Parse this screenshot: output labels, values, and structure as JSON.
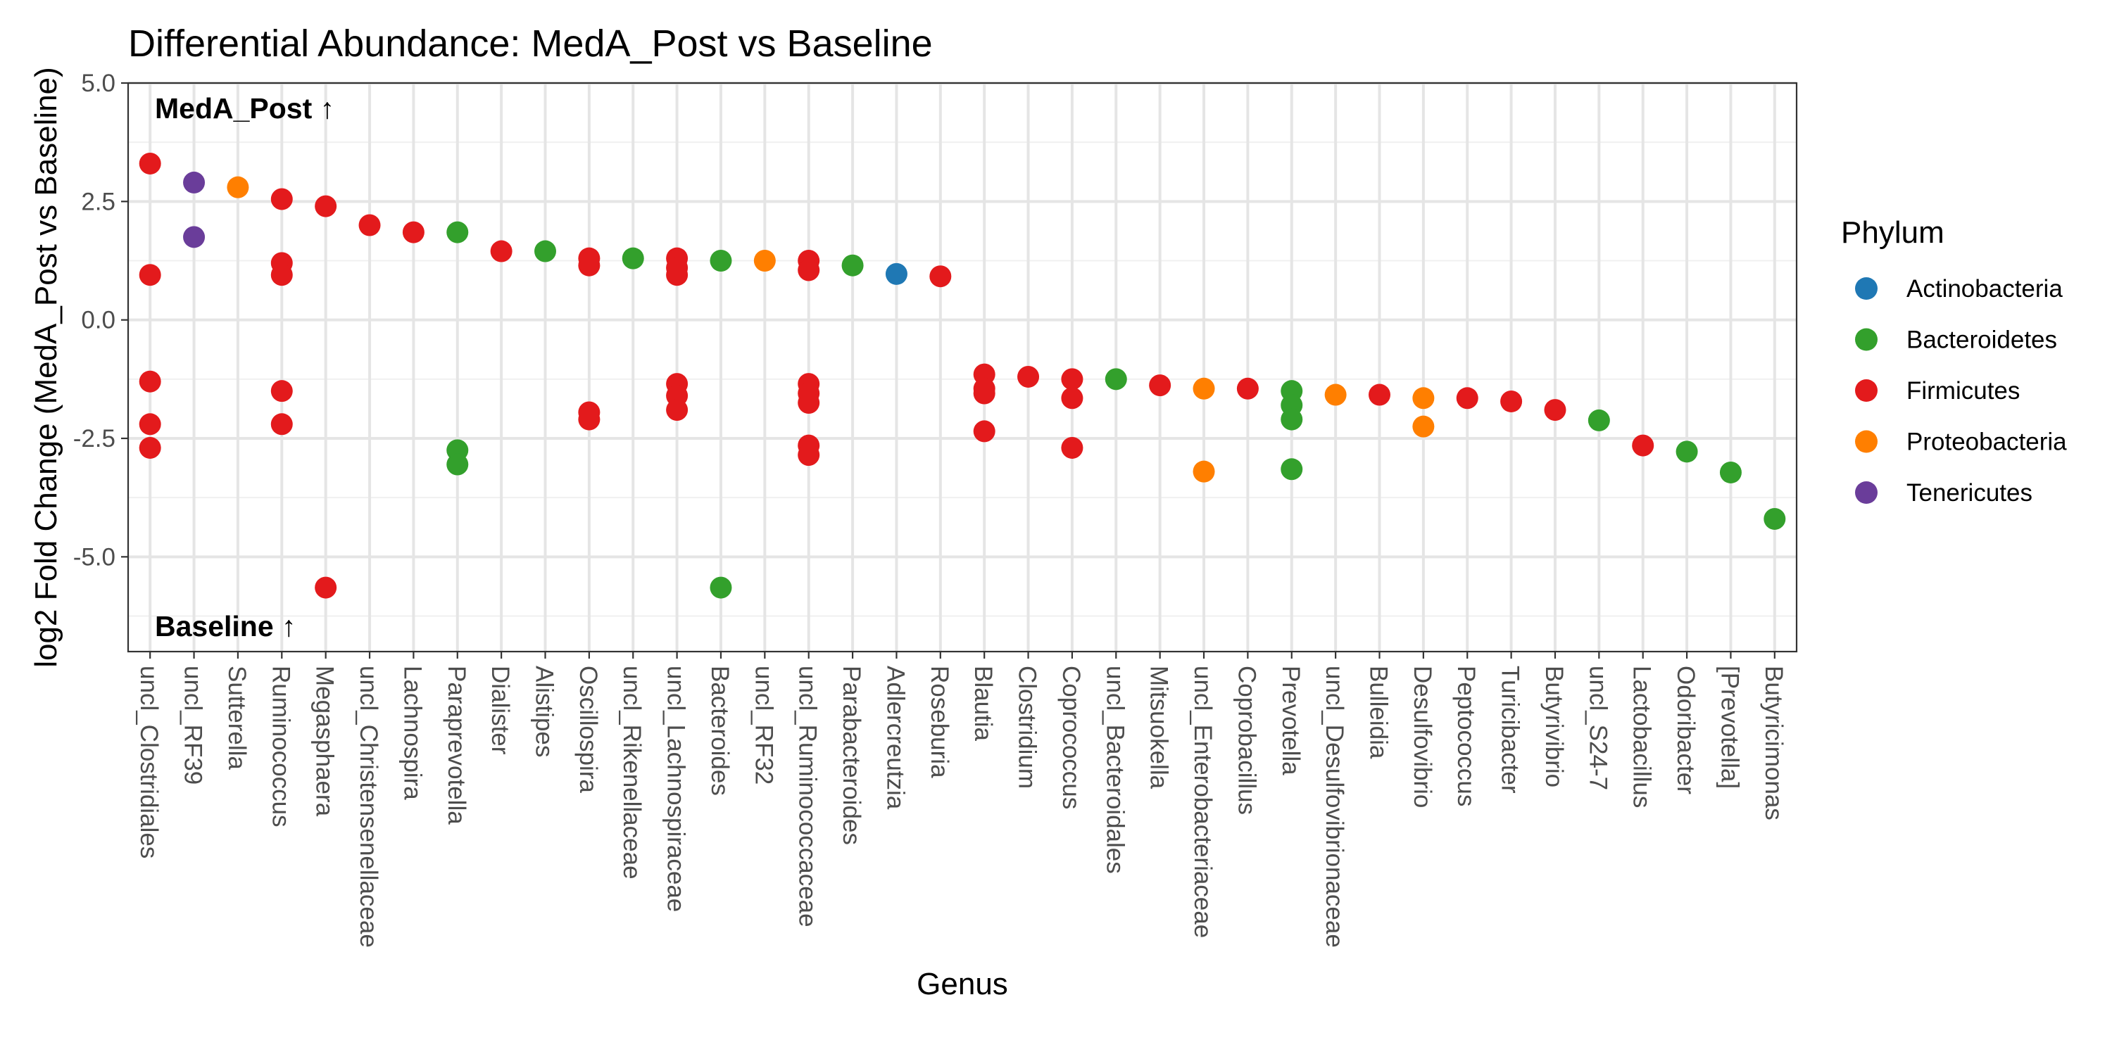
{
  "chart_data": {
    "type": "scatter",
    "title": "Differential Abundance: MedA_Post vs Baseline",
    "xlabel": "Genus",
    "ylabel": "log2 Fold Change (MedA_Post vs Baseline)",
    "ylim": [
      -7,
      5
    ],
    "yticks": [
      5.0,
      2.5,
      0.0,
      -2.5,
      -5.0
    ],
    "ytick_labels": [
      "5.0",
      "2.5",
      "0.0",
      "-2.5",
      "-5.0"
    ],
    "grid": true,
    "legend": {
      "title": "Phylum",
      "placement": "right",
      "entries": [
        {
          "name": "Actinobacteria",
          "color": "#1f78b4"
        },
        {
          "name": "Bacteroidetes",
          "color": "#33a02c"
        },
        {
          "name": "Firmicutes",
          "color": "#e31a1c"
        },
        {
          "name": "Proteobacteria",
          "color": "#ff7f00"
        },
        {
          "name": "Tenericutes",
          "color": "#6a3d9a"
        }
      ]
    },
    "annotations": {
      "top": "MedA_Post ↑",
      "bottom": "Baseline ↑"
    },
    "categories": [
      "uncl_Clostridiales",
      "uncl_RF39",
      "Sutterella",
      "Ruminococcus",
      "Megasphaera",
      "uncl_Christensenellaceae",
      "Lachnospira",
      "Paraprevotella",
      "Dialister",
      "Alistipes",
      "Oscillospira",
      "uncl_Rikenellaceae",
      "uncl_Lachnospiraceae",
      "Bacteroides",
      "uncl_RF32",
      "uncl_Ruminococcaceae",
      "Parabacteroides",
      "Adlercreutzia",
      "Roseburia",
      "Blautia",
      "Clostridium",
      "Coprococcus",
      "uncl_Bacteroidales",
      "Mitsuokella",
      "uncl_Enterobacteriaceae",
      "Coprobacillus",
      "Prevotella",
      "uncl_Desulfovibrionaceae",
      "Bulleidia",
      "Desulfovibrio",
      "Peptococcus",
      "Turicibacter",
      "Butyrivibrio",
      "uncl_S24-7",
      "Lactobacillus",
      "Odoribacter",
      "[Prevotella]",
      "Butyricimonas"
    ],
    "points": [
      {
        "x": "uncl_Clostridiales",
        "y": 3.3,
        "phylum": "Firmicutes"
      },
      {
        "x": "uncl_Clostridiales",
        "y": 0.95,
        "phylum": "Firmicutes"
      },
      {
        "x": "uncl_Clostridiales",
        "y": -1.3,
        "phylum": "Firmicutes"
      },
      {
        "x": "uncl_Clostridiales",
        "y": -2.2,
        "phylum": "Firmicutes"
      },
      {
        "x": "uncl_Clostridiales",
        "y": -2.7,
        "phylum": "Firmicutes"
      },
      {
        "x": "uncl_RF39",
        "y": 2.9,
        "phylum": "Tenericutes"
      },
      {
        "x": "uncl_RF39",
        "y": 1.75,
        "phylum": "Tenericutes"
      },
      {
        "x": "Sutterella",
        "y": 2.8,
        "phylum": "Proteobacteria"
      },
      {
        "x": "Ruminococcus",
        "y": 2.55,
        "phylum": "Firmicutes"
      },
      {
        "x": "Ruminococcus",
        "y": 1.2,
        "phylum": "Firmicutes"
      },
      {
        "x": "Ruminococcus",
        "y": 0.95,
        "phylum": "Firmicutes"
      },
      {
        "x": "Ruminococcus",
        "y": -1.5,
        "phylum": "Firmicutes"
      },
      {
        "x": "Ruminococcus",
        "y": -2.2,
        "phylum": "Firmicutes"
      },
      {
        "x": "Megasphaera",
        "y": 2.4,
        "phylum": "Firmicutes"
      },
      {
        "x": "Megasphaera",
        "y": -5.65,
        "phylum": "Firmicutes"
      },
      {
        "x": "uncl_Christensenellaceae",
        "y": 2.0,
        "phylum": "Firmicutes"
      },
      {
        "x": "Lachnospira",
        "y": 1.85,
        "phylum": "Firmicutes"
      },
      {
        "x": "Paraprevotella",
        "y": 1.85,
        "phylum": "Bacteroidetes"
      },
      {
        "x": "Paraprevotella",
        "y": -2.75,
        "phylum": "Bacteroidetes"
      },
      {
        "x": "Paraprevotella",
        "y": -3.05,
        "phylum": "Bacteroidetes"
      },
      {
        "x": "Dialister",
        "y": 1.45,
        "phylum": "Firmicutes"
      },
      {
        "x": "Alistipes",
        "y": 1.45,
        "phylum": "Bacteroidetes"
      },
      {
        "x": "Oscillospira",
        "y": 1.3,
        "phylum": "Firmicutes"
      },
      {
        "x": "Oscillospira",
        "y": 1.15,
        "phylum": "Firmicutes"
      },
      {
        "x": "Oscillospira",
        "y": -1.95,
        "phylum": "Firmicutes"
      },
      {
        "x": "Oscillospira",
        "y": -2.1,
        "phylum": "Firmicutes"
      },
      {
        "x": "uncl_Rikenellaceae",
        "y": 1.3,
        "phylum": "Bacteroidetes"
      },
      {
        "x": "uncl_Lachnospiraceae",
        "y": 1.3,
        "phylum": "Firmicutes"
      },
      {
        "x": "uncl_Lachnospiraceae",
        "y": 1.1,
        "phylum": "Firmicutes"
      },
      {
        "x": "uncl_Lachnospiraceae",
        "y": 0.95,
        "phylum": "Firmicutes"
      },
      {
        "x": "uncl_Lachnospiraceae",
        "y": -1.35,
        "phylum": "Firmicutes"
      },
      {
        "x": "uncl_Lachnospiraceae",
        "y": -1.6,
        "phylum": "Firmicutes"
      },
      {
        "x": "uncl_Lachnospiraceae",
        "y": -1.9,
        "phylum": "Firmicutes"
      },
      {
        "x": "Bacteroides",
        "y": 1.25,
        "phylum": "Bacteroidetes"
      },
      {
        "x": "Bacteroides",
        "y": -5.65,
        "phylum": "Bacteroidetes"
      },
      {
        "x": "uncl_RF32",
        "y": 1.25,
        "phylum": "Proteobacteria"
      },
      {
        "x": "uncl_Ruminococcaceae",
        "y": 1.25,
        "phylum": "Firmicutes"
      },
      {
        "x": "uncl_Ruminococcaceae",
        "y": 1.05,
        "phylum": "Firmicutes"
      },
      {
        "x": "uncl_Ruminococcaceae",
        "y": -1.35,
        "phylum": "Firmicutes"
      },
      {
        "x": "uncl_Ruminococcaceae",
        "y": -1.55,
        "phylum": "Firmicutes"
      },
      {
        "x": "uncl_Ruminococcaceae",
        "y": -1.75,
        "phylum": "Firmicutes"
      },
      {
        "x": "uncl_Ruminococcaceae",
        "y": -2.65,
        "phylum": "Firmicutes"
      },
      {
        "x": "uncl_Ruminococcaceae",
        "y": -2.85,
        "phylum": "Firmicutes"
      },
      {
        "x": "Parabacteroides",
        "y": 1.15,
        "phylum": "Bacteroidetes"
      },
      {
        "x": "Adlercreutzia",
        "y": 0.97,
        "phylum": "Actinobacteria"
      },
      {
        "x": "Roseburia",
        "y": 0.92,
        "phylum": "Firmicutes"
      },
      {
        "x": "Blautia",
        "y": -1.15,
        "phylum": "Firmicutes"
      },
      {
        "x": "Blautia",
        "y": -1.45,
        "phylum": "Firmicutes"
      },
      {
        "x": "Blautia",
        "y": -1.55,
        "phylum": "Firmicutes"
      },
      {
        "x": "Blautia",
        "y": -2.35,
        "phylum": "Firmicutes"
      },
      {
        "x": "Clostridium",
        "y": -1.2,
        "phylum": "Firmicutes"
      },
      {
        "x": "Coprococcus",
        "y": -1.25,
        "phylum": "Firmicutes"
      },
      {
        "x": "Coprococcus",
        "y": -1.65,
        "phylum": "Firmicutes"
      },
      {
        "x": "Coprococcus",
        "y": -2.7,
        "phylum": "Firmicutes"
      },
      {
        "x": "uncl_Bacteroidales",
        "y": -1.25,
        "phylum": "Bacteroidetes"
      },
      {
        "x": "Mitsuokella",
        "y": -1.38,
        "phylum": "Firmicutes"
      },
      {
        "x": "uncl_Enterobacteriaceae",
        "y": -1.45,
        "phylum": "Proteobacteria"
      },
      {
        "x": "uncl_Enterobacteriaceae",
        "y": -3.2,
        "phylum": "Proteobacteria"
      },
      {
        "x": "Coprobacillus",
        "y": -1.45,
        "phylum": "Firmicutes"
      },
      {
        "x": "Prevotella",
        "y": -1.5,
        "phylum": "Bacteroidetes"
      },
      {
        "x": "Prevotella",
        "y": -1.8,
        "phylum": "Bacteroidetes"
      },
      {
        "x": "Prevotella",
        "y": -2.1,
        "phylum": "Bacteroidetes"
      },
      {
        "x": "Prevotella",
        "y": -3.15,
        "phylum": "Bacteroidetes"
      },
      {
        "x": "uncl_Desulfovibrionaceae",
        "y": -1.58,
        "phylum": "Proteobacteria"
      },
      {
        "x": "Bulleidia",
        "y": -1.58,
        "phylum": "Firmicutes"
      },
      {
        "x": "Desulfovibrio",
        "y": -1.65,
        "phylum": "Proteobacteria"
      },
      {
        "x": "Desulfovibrio",
        "y": -2.25,
        "phylum": "Proteobacteria"
      },
      {
        "x": "Peptococcus",
        "y": -1.65,
        "phylum": "Firmicutes"
      },
      {
        "x": "Turicibacter",
        "y": -1.72,
        "phylum": "Firmicutes"
      },
      {
        "x": "Butyrivibrio",
        "y": -1.9,
        "phylum": "Firmicutes"
      },
      {
        "x": "uncl_S24-7",
        "y": -2.12,
        "phylum": "Bacteroidetes"
      },
      {
        "x": "Lactobacillus",
        "y": -2.65,
        "phylum": "Firmicutes"
      },
      {
        "x": "Odoribacter",
        "y": -2.78,
        "phylum": "Bacteroidetes"
      },
      {
        "x": "[Prevotella]",
        "y": -3.22,
        "phylum": "Bacteroidetes"
      },
      {
        "x": "Butyricimonas",
        "y": -4.2,
        "phylum": "Bacteroidetes"
      }
    ]
  }
}
